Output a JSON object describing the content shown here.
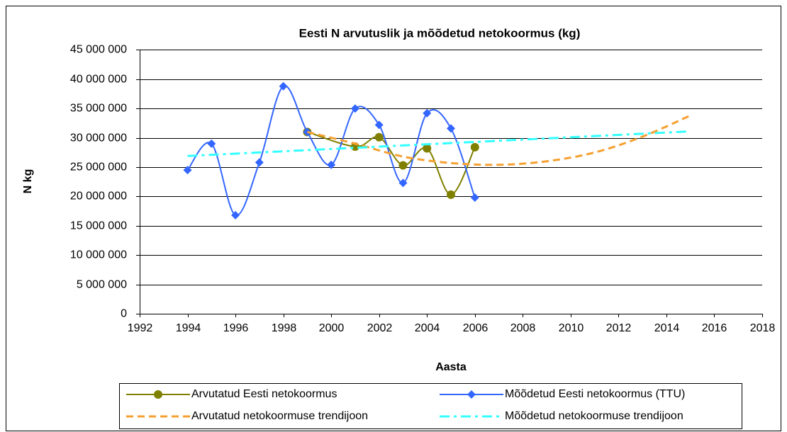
{
  "chart_data": {
    "type": "line",
    "title": "Eesti N arvutuslik ja mõõdetud netokoormus (kg)",
    "xlabel": "Aasta",
    "ylabel": "N kg",
    "xlim": [
      1992,
      2018
    ],
    "xticks": [
      1992,
      1994,
      1996,
      1998,
      2000,
      2002,
      2004,
      2006,
      2008,
      2010,
      2012,
      2014,
      2016,
      2018
    ],
    "ylim": [
      0,
      45000000
    ],
    "yticks": [
      0,
      {
        "value": 5000000,
        "label": "5 000 000"
      },
      {
        "value": 10000000,
        "label": "10 000 000"
      },
      {
        "value": 15000000,
        "label": "15 000 000"
      },
      {
        "value": 20000000,
        "label": "20 000 000"
      },
      {
        "value": 25000000,
        "label": "25 000 000"
      },
      {
        "value": 30000000,
        "label": "30 000 000"
      },
      {
        "value": 35000000,
        "label": "35 000 000"
      },
      {
        "value": 40000000,
        "label": "40 000 000"
      },
      {
        "value": 45000000,
        "label": "45 000 000"
      }
    ],
    "grid": true,
    "series": [
      {
        "name": "Arvutatud Eesti netokoormus",
        "color": "#808000",
        "marker": "circle",
        "smooth": true,
        "x": [
          1999,
          2001,
          2002,
          2003,
          2004,
          2005,
          2006
        ],
        "values": [
          31000000,
          28500000,
          30100000,
          25300000,
          28200000,
          20300000,
          28400000
        ]
      },
      {
        "name": "Mõõdetud Eesti netokoormus (TTU)",
        "color": "#3366ff",
        "marker": "diamond",
        "smooth": true,
        "x": [
          1994,
          1995,
          1996,
          1997,
          1998,
          1999,
          2000,
          2001,
          2002,
          2003,
          2004,
          2005,
          2006
        ],
        "values": [
          24500000,
          29000000,
          16800000,
          25800000,
          38800000,
          31000000,
          25400000,
          35000000,
          32200000,
          22300000,
          34200000,
          31600000,
          19800000
        ]
      },
      {
        "name": "Arvutatud netokoormuse trendijoon",
        "color": "#f5a030",
        "dash": "dash",
        "smooth": true,
        "x": [
          1999,
          2001,
          2003,
          2005,
          2007,
          2009,
          2011,
          2013,
          2015
        ],
        "values": [
          31000000,
          29000000,
          26800000,
          25700000,
          25400000,
          26000000,
          27500000,
          30200000,
          33800000
        ]
      },
      {
        "name": "Mõõdetud netokoormuse trendijoon",
        "color": "#33ffff",
        "dash": "dashdot",
        "smooth": false,
        "x": [
          1994,
          2015
        ],
        "values": [
          26900000,
          31100000
        ]
      }
    ]
  }
}
